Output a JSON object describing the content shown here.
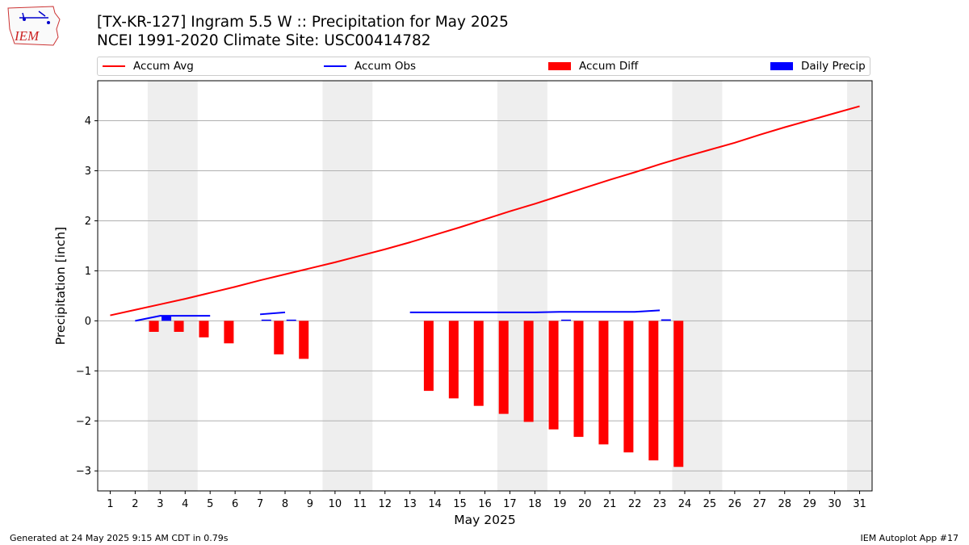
{
  "logo": {
    "text": "IEM",
    "name": "iem-logo"
  },
  "title": {
    "line1": "[TX-KR-127] Ingram 5.5 W :: Precipitation for May 2025",
    "line2": "NCEI 1991-2020 Climate Site: USC00414782"
  },
  "legend": [
    {
      "label": "Accum Avg",
      "kind": "line",
      "color": "#ff0000"
    },
    {
      "label": "Accum Obs",
      "kind": "line",
      "color": "#0000ff"
    },
    {
      "label": "Accum Diff",
      "kind": "box",
      "color": "#ff0000"
    },
    {
      "label": "Daily Precip",
      "kind": "box",
      "color": "#0000ff"
    }
  ],
  "footer": {
    "left": "Generated at 24 May 2025 9:15 AM CDT in 0.79s",
    "right": "IEM Autoplot App #17"
  },
  "chart_data": {
    "type": "bar",
    "title": "[TX-KR-127] Ingram 5.5 W :: Precipitation for May 2025",
    "subtitle": "NCEI 1991-2020 Climate Site: USC00414782",
    "xlabel": "May 2025",
    "ylabel": "Precipitation [inch]",
    "xlim": [
      0.5,
      31.5
    ],
    "ylim": [
      -3.4,
      4.8
    ],
    "x_ticks": [
      1,
      2,
      3,
      4,
      5,
      6,
      7,
      8,
      9,
      10,
      11,
      12,
      13,
      14,
      15,
      16,
      17,
      18,
      19,
      20,
      21,
      22,
      23,
      24,
      25,
      26,
      27,
      28,
      29,
      30,
      31
    ],
    "y_ticks": [
      -3,
      -2,
      -1,
      0,
      1,
      2,
      3,
      4
    ],
    "grid": "y",
    "legend_position": "top",
    "weekend_shading": [
      [
        2.5,
        4.5
      ],
      [
        9.5,
        11.5
      ],
      [
        16.5,
        18.5
      ],
      [
        23.5,
        25.5
      ],
      [
        30.5,
        31.5
      ]
    ],
    "colors": {
      "avg": "#ff0000",
      "obs": "#0000ff",
      "diff": "#ff0000",
      "daily": "#0000ff",
      "shade": "#eeeeee",
      "grid": "#b0b0b0"
    },
    "series": [
      {
        "name": "Accum Avg",
        "kind": "line",
        "x": [
          1,
          2,
          3,
          4,
          5,
          6,
          7,
          8,
          9,
          10,
          11,
          12,
          13,
          14,
          15,
          16,
          17,
          18,
          19,
          20,
          21,
          22,
          23,
          24,
          25,
          26,
          27,
          28,
          29,
          30,
          31
        ],
        "values": [
          0.11,
          0.22,
          0.33,
          0.44,
          0.56,
          0.68,
          0.81,
          0.93,
          1.05,
          1.17,
          1.3,
          1.43,
          1.57,
          1.72,
          1.87,
          2.03,
          2.19,
          2.34,
          2.5,
          2.66,
          2.82,
          2.97,
          3.13,
          3.28,
          3.42,
          3.56,
          3.72,
          3.87,
          4.01,
          4.15,
          4.29
        ]
      },
      {
        "name": "Accum Obs",
        "kind": "line",
        "segments": [
          {
            "x": [
              2,
              3,
              4,
              5
            ],
            "values": [
              0.0,
              0.1,
              0.1,
              0.1
            ]
          },
          {
            "x": [
              7,
              8
            ],
            "values": [
              0.13,
              0.17
            ]
          },
          {
            "x": [
              13,
              14,
              15,
              16,
              17,
              18,
              19,
              20,
              21,
              22,
              23
            ],
            "values": [
              0.17,
              0.17,
              0.17,
              0.17,
              0.17,
              0.17,
              0.18,
              0.18,
              0.18,
              0.18,
              0.21
            ]
          }
        ]
      },
      {
        "name": "Accum Diff",
        "kind": "bar",
        "x": [
          2,
          3,
          4,
          5,
          7,
          8,
          13,
          14,
          15,
          16,
          17,
          18,
          19,
          20,
          21,
          22,
          23
        ],
        "values": [
          -0.22,
          -0.22,
          -0.33,
          -0.45,
          -0.67,
          -0.76,
          -1.4,
          -1.55,
          -1.7,
          -1.86,
          -2.02,
          -2.17,
          -2.32,
          -2.47,
          -2.63,
          -2.79,
          -2.92
        ]
      },
      {
        "name": "Daily Precip",
        "kind": "bar",
        "x": [
          3,
          7,
          8,
          19,
          23
        ],
        "values": [
          0.1,
          0.02,
          0.02,
          0.01,
          0.03
        ]
      }
    ]
  }
}
